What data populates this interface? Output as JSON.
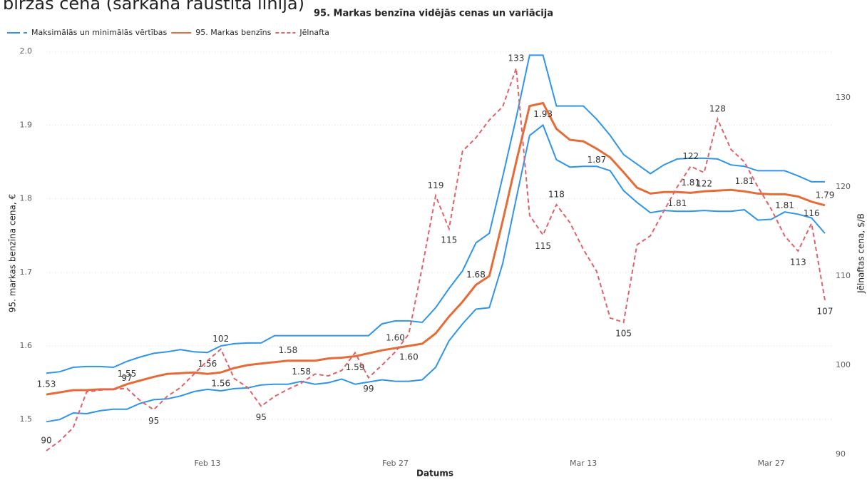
{
  "header": {
    "text": "biržas cena (sarkanā raustītā līnija)"
  },
  "chart_data": {
    "type": "line",
    "title": "95. Markas benzīna vidējās cenas un variācija",
    "x_label": "Datums",
    "y_label": "95. markas benzīna cena, €",
    "y2_label": "Jēlnaftas cena, $/B",
    "x": [
      "Feb 1",
      "Feb 2",
      "Feb 3",
      "Feb 4",
      "Feb 5",
      "Feb 6",
      "Feb 7",
      "Feb 8",
      "Feb 9",
      "Feb 10",
      "Feb 11",
      "Feb 12",
      "Feb 13",
      "Feb 14",
      "Feb 15",
      "Feb 16",
      "Feb 17",
      "Feb 18",
      "Feb 19",
      "Feb 20",
      "Feb 21",
      "Feb 22",
      "Feb 23",
      "Feb 24",
      "Feb 25",
      "Feb 26",
      "Feb 27",
      "Feb 28",
      "Mar 1",
      "Mar 2",
      "Mar 3",
      "Mar 4",
      "Mar 5",
      "Mar 6",
      "Mar 7",
      "Mar 8",
      "Mar 9",
      "Mar 10",
      "Mar 11",
      "Mar 12",
      "Mar 13",
      "Mar 14",
      "Mar 15",
      "Mar 16",
      "Mar 17",
      "Mar 18",
      "Mar 19",
      "Mar 20",
      "Mar 21",
      "Mar 22",
      "Mar 23",
      "Mar 24",
      "Mar 25",
      "Mar 26",
      "Mar 27",
      "Mar 28",
      "Mar 29",
      "Mar 30",
      "Mar 31"
    ],
    "xticks": [
      "Feb 13",
      "Feb 27",
      "Mar 13",
      "Mar 27"
    ],
    "ylim": [
      1.445,
      2.007
    ],
    "yticks": [
      1.5,
      1.6,
      1.7,
      1.8,
      1.9,
      {
        "value": 2,
        "label": "2.0"
      }
    ],
    "y2lim": [
      89.36,
      135.76
    ],
    "y2ticks": [
      90,
      100,
      110,
      120,
      130
    ],
    "grid": true,
    "legend": "top-left",
    "series": [
      {
        "name": "Maksimālās un minimālās vērtības",
        "color": "#2f95e8",
        "style": "solid",
        "values": [
          1.563,
          1.565,
          1.571,
          1.572,
          1.572,
          1.571,
          1.579,
          1.585,
          1.59,
          1.592,
          1.595,
          1.592,
          1.591,
          1.6,
          1.603,
          1.604,
          1.604,
          1.614,
          1.614,
          1.614,
          1.614,
          1.614,
          1.614,
          1.614,
          1.614,
          1.63,
          1.634,
          1.634,
          1.632,
          1.652,
          1.678,
          1.702,
          1.74,
          1.753,
          1.83,
          1.91,
          1.995,
          1.995,
          1.926,
          1.926,
          1.926,
          1.908,
          1.886,
          1.86,
          1.847,
          1.834,
          1.846,
          1.854,
          1.855,
          1.855,
          1.854,
          1.846,
          1.844,
          1.838,
          1.838,
          1.838,
          1.831,
          1.823,
          1.823
        ],
        "min_values": [
          1.497,
          1.5,
          1.509,
          1.508,
          1.512,
          1.514,
          1.514,
          1.522,
          1.527,
          1.528,
          1.532,
          1.538,
          1.541,
          1.539,
          1.542,
          1.543,
          1.547,
          1.548,
          1.548,
          1.552,
          1.548,
          1.55,
          1.555,
          1.548,
          1.551,
          1.554,
          1.552,
          1.552,
          1.554,
          1.571,
          1.607,
          1.63,
          1.65,
          1.652,
          1.712,
          1.8,
          1.886,
          1.9,
          1.853,
          1.843,
          1.844,
          1.844,
          1.838,
          1.811,
          1.795,
          1.781,
          1.784,
          1.783,
          1.783,
          1.784,
          1.783,
          1.783,
          1.785,
          1.771,
          1.772,
          1.782,
          1.779,
          1.774,
          1.753
        ]
      },
      {
        "name": "95. Markas benzīns",
        "color": "#e66c37",
        "style": "solid",
        "values": [
          1.534,
          1.537,
          1.54,
          1.54,
          1.541,
          1.541,
          1.548,
          1.553,
          1.558,
          1.562,
          1.563,
          1.564,
          1.562,
          1.564,
          1.57,
          1.574,
          1.576,
          1.578,
          1.58,
          1.58,
          1.58,
          1.583,
          1.584,
          1.586,
          1.59,
          1.594,
          1.597,
          1.6,
          1.603,
          1.617,
          1.64,
          1.66,
          1.683,
          1.695,
          1.77,
          1.85,
          1.926,
          1.93,
          1.895,
          1.88,
          1.878,
          1.868,
          1.856,
          1.836,
          1.815,
          1.807,
          1.809,
          1.809,
          1.808,
          1.81,
          1.811,
          1.812,
          1.81,
          1.807,
          1.806,
          1.806,
          1.803,
          1.796,
          1.791
        ],
        "value_labels": [
          "1.53",
          null,
          null,
          null,
          null,
          null,
          "1.55",
          null,
          null,
          null,
          null,
          null,
          "1.56",
          "1.56",
          null,
          null,
          null,
          null,
          "1.58",
          "1.58",
          null,
          null,
          null,
          "1.59",
          null,
          null,
          "1.60",
          "1.60",
          null,
          null,
          null,
          null,
          "1.68",
          null,
          null,
          null,
          null,
          "1.93",
          null,
          null,
          null,
          "1.87",
          null,
          null,
          null,
          null,
          null,
          "1.81",
          "1.81",
          null,
          null,
          null,
          "1.81",
          null,
          null,
          "1.81",
          null,
          null,
          "1.79"
        ]
      },
      {
        "name": "Jēlnafta",
        "color": "#e0626b",
        "style": "dashed",
        "axis": "y2",
        "values": [
          90.4,
          91.5,
          93,
          97,
          97.2,
          97.3,
          97.4,
          96,
          95,
          96.5,
          97.5,
          99,
          100.5,
          101.8,
          98.5,
          97.5,
          95.4,
          96.5,
          97.3,
          98,
          99,
          98.8,
          99.4,
          101.4,
          98.6,
          100,
          101.5,
          103.5,
          111,
          119,
          115.3,
          124,
          125.5,
          127.5,
          129,
          133.3,
          116.8,
          114.6,
          118,
          116,
          113,
          110.5,
          105.3,
          104.8,
          113.5,
          114.5,
          117.3,
          120,
          122.3,
          121.6,
          127.6,
          124.2,
          122.8,
          120,
          117.5,
          114.5,
          112.8,
          115.9,
          107.3
        ],
        "value_labels": [
          "90",
          null,
          null,
          null,
          null,
          null,
          "97",
          null,
          "95",
          null,
          null,
          null,
          null,
          "102",
          null,
          null,
          "95",
          null,
          null,
          null,
          null,
          null,
          null,
          null,
          "99",
          null,
          null,
          null,
          null,
          "119",
          "115",
          null,
          null,
          null,
          null,
          "133",
          null,
          "115",
          "118",
          null,
          null,
          null,
          null,
          "105",
          null,
          null,
          null,
          null,
          "122",
          "122",
          "128",
          null,
          null,
          null,
          null,
          null,
          "113",
          "116",
          "107"
        ]
      }
    ]
  }
}
